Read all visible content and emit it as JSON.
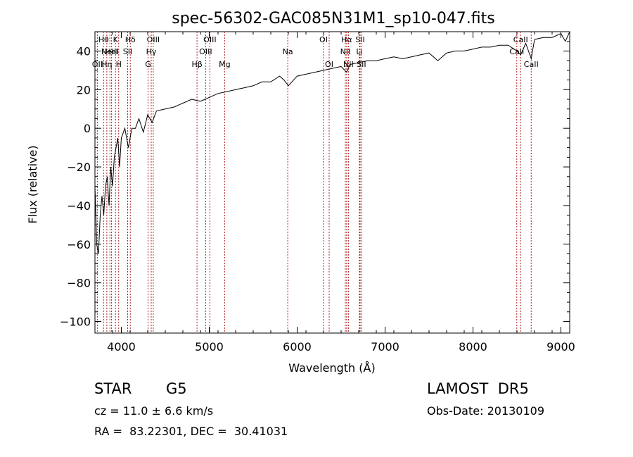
{
  "chart_data": {
    "type": "line",
    "title": "spec-56302-GAC085N31M1_sp10-047.fits",
    "xlabel": "Wavelength (Å)",
    "ylabel": "Flux (relative)",
    "xlim": [
      3700,
      9100
    ],
    "ylim": [
      -106,
      50
    ],
    "xticks": [
      4000,
      5000,
      6000,
      7000,
      8000,
      9000
    ],
    "yticks": [
      -100,
      -80,
      -60,
      -40,
      -20,
      0,
      20,
      40
    ],
    "xtick_labels": [
      "4000",
      "5000",
      "6000",
      "7000",
      "8000",
      "9000"
    ],
    "ytick_labels": [
      "−100",
      "−80",
      "−60",
      "−40",
      "−20",
      "0",
      "20",
      "40"
    ],
    "grid": false,
    "line_color": "#000000",
    "marker_color": "#b22222",
    "series": [
      {
        "x": [
          3700,
          3720,
          3740,
          3760,
          3780,
          3800,
          3820,
          3840,
          3860,
          3880,
          3900,
          3920,
          3940,
          3960,
          3980,
          4000,
          4040,
          4080,
          4120,
          4160,
          4200,
          4250,
          4300,
          4350,
          4400,
          4500,
          4600,
          4700,
          4800,
          4900,
          5000,
          5100,
          5200,
          5300,
          5400,
          5500,
          5600,
          5700,
          5800,
          5850,
          5900,
          6000,
          6100,
          6200,
          6300,
          6400,
          6500,
          6563,
          6600,
          6700,
          6800,
          6900,
          7000,
          7100,
          7200,
          7300,
          7400,
          7500,
          7600,
          7700,
          7800,
          7900,
          8000,
          8100,
          8200,
          8300,
          8400,
          8500,
          8542,
          8600,
          8662,
          8700,
          8800,
          8900,
          9000,
          9050,
          9100
        ],
        "y": [
          -30,
          -60,
          -65,
          -45,
          -35,
          -45,
          -30,
          -25,
          -40,
          -20,
          -30,
          -15,
          -10,
          -5,
          -20,
          -5,
          0,
          -10,
          0,
          0,
          5,
          -2,
          7,
          3,
          9,
          10,
          11,
          13,
          15,
          14,
          16,
          18,
          19,
          20,
          21,
          22,
          24,
          24,
          27,
          25,
          22,
          27,
          28,
          29,
          30,
          31,
          32,
          29,
          33,
          34,
          35,
          35,
          36,
          37,
          36,
          37,
          38,
          39,
          35,
          39,
          40,
          40,
          41,
          42,
          42,
          43,
          43,
          40,
          38,
          44,
          36,
          46,
          47,
          47,
          49,
          45,
          50
        ]
      }
    ],
    "lines": [
      {
        "x": 3727,
        "label": "OII",
        "row": 2
      },
      {
        "x": 3798,
        "label": "Hθ",
        "row": 0
      },
      {
        "x": 3835,
        "label": "Hη",
        "row": 2
      },
      {
        "x": 3870,
        "label": "NeIII",
        "row": 1
      },
      {
        "x": 3889,
        "label": "HeI",
        "row": 1
      },
      {
        "x": 3934,
        "label": "K",
        "row": 0
      },
      {
        "x": 3970,
        "label": "H",
        "row": 2
      },
      {
        "x": 4072,
        "label": "SII",
        "row": 1
      },
      {
        "x": 4102,
        "label": "Hδ",
        "row": 0
      },
      {
        "x": 4304,
        "label": "G",
        "row": 2
      },
      {
        "x": 4340,
        "label": "Hγ",
        "row": 1
      },
      {
        "x": 4363,
        "label": "OIII",
        "row": 0
      },
      {
        "x": 4861,
        "label": "Hβ",
        "row": 2
      },
      {
        "x": 4959,
        "label": "OIII",
        "row": 1
      },
      {
        "x": 5007,
        "label": "OIII",
        "row": 0
      },
      {
        "x": 5175,
        "label": "Mg",
        "row": 2
      },
      {
        "x": 5893,
        "label": "Na",
        "row": 1
      },
      {
        "x": 6300,
        "label": "OI",
        "row": 0
      },
      {
        "x": 6364,
        "label": "OI",
        "row": 2
      },
      {
        "x": 6548,
        "label": "NII",
        "row": 1
      },
      {
        "x": 6563,
        "label": "Hα",
        "row": 0
      },
      {
        "x": 6583,
        "label": "NII",
        "row": 2
      },
      {
        "x": 6708,
        "label": "Li",
        "row": 1
      },
      {
        "x": 6716,
        "label": "SII",
        "row": 0
      },
      {
        "x": 6731,
        "label": "SII",
        "row": 2
      },
      {
        "x": 8498,
        "label": "CaII",
        "row": 1
      },
      {
        "x": 8542,
        "label": "CaII",
        "row": 0
      },
      {
        "x": 8662,
        "label": "CaII",
        "row": 2
      }
    ]
  },
  "info": {
    "class_label": "STAR",
    "subclass": "G5",
    "survey": "LAMOST  DR5",
    "cz_text": "cz = 11.0 ± 6.6 km/s",
    "obs_date": "Obs-Date: 20130109",
    "radec": "RA =  83.22301, DEC =  30.41031"
  }
}
